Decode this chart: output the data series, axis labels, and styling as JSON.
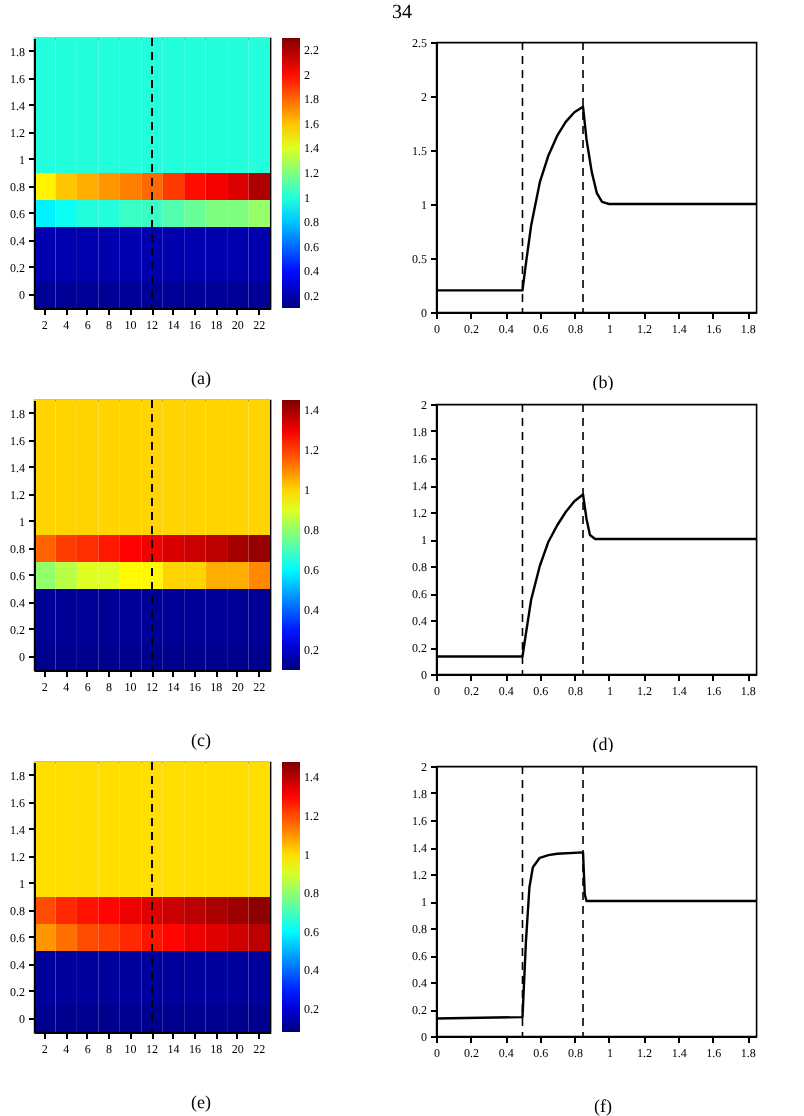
{
  "chart_data": [
    {
      "type": "heatmap",
      "annotations": [
        "34",
        "(a)"
      ],
      "categories": [
        "2",
        "4",
        "6",
        "8",
        "10",
        "12",
        "14",
        "16",
        "18",
        "20",
        "22"
      ],
      "y_categories": [
        "1.8",
        "1.6",
        "1.4",
        "1.2",
        "1",
        "0.8",
        "0.6",
        "0.4",
        "0.2",
        "0"
      ],
      "cells": [
        [
          1,
          1,
          1,
          1,
          1,
          1,
          1,
          1,
          1,
          1,
          1
        ],
        [
          1,
          1,
          1,
          1,
          1,
          1,
          1,
          1,
          1,
          1,
          1
        ],
        [
          1,
          1,
          1,
          1,
          1,
          1,
          1,
          1,
          1,
          1,
          1
        ],
        [
          1,
          1,
          1,
          1,
          1,
          1,
          1,
          1,
          1,
          1,
          1
        ],
        [
          1,
          1,
          1,
          1,
          1,
          1,
          1,
          1,
          1,
          1,
          1
        ],
        [
          1.5,
          1.6,
          1.65,
          1.7,
          1.75,
          1.8,
          1.9,
          2,
          2.05,
          2.1,
          2.2
        ],
        [
          0.9,
          0.95,
          1,
          1,
          1.05,
          1.05,
          1.1,
          1.15,
          1.2,
          1.2,
          1.25
        ],
        [
          0.2,
          0.2,
          0.2,
          0.2,
          0.2,
          0.2,
          0.2,
          0.2,
          0.2,
          0.2,
          0.2
        ],
        [
          0.2,
          0.2,
          0.2,
          0.2,
          0.2,
          0.2,
          0.2,
          0.2,
          0.2,
          0.2,
          0.2
        ],
        [
          0.15,
          0.15,
          0.15,
          0.15,
          0.15,
          0.15,
          0.15,
          0.15,
          0.15,
          0.15,
          0.15
        ]
      ],
      "clim": [
        0.1,
        2.3
      ],
      "cticks": [
        0.2,
        0.4,
        0.6,
        0.8,
        1,
        1.2,
        1.4,
        1.6,
        1.8,
        2,
        2.2
      ],
      "ref_lines": [
        {
          "axis": "x",
          "value": "12",
          "line_style": "dashed"
        }
      ]
    },
    {
      "type": "line",
      "annotations": [
        "(b)"
      ],
      "xlim": [
        0,
        1.85
      ],
      "xticks": [
        0,
        0.2,
        0.4,
        0.6,
        0.8,
        1,
        1.2,
        1.4,
        1.6,
        1.8
      ],
      "ylim": [
        0,
        2.5
      ],
      "yticks": [
        0,
        0.5,
        1,
        1.5,
        2,
        2.5
      ],
      "grid": false,
      "series": [
        {
          "color": "#000000",
          "x": [
            0,
            0.5,
            0.52,
            0.55,
            0.6,
            0.65,
            0.7,
            0.75,
            0.8,
            0.85,
            0.87,
            0.9,
            0.93,
            0.96,
            1,
            1.85
          ],
          "values": [
            0.2,
            0.2,
            0.45,
            0.8,
            1.2,
            1.45,
            1.63,
            1.76,
            1.85,
            1.9,
            1.6,
            1.3,
            1.1,
            1.02,
            1,
            1
          ]
        }
      ],
      "ref_lines": [
        {
          "axis": "x",
          "value": 0.5,
          "line_style": "dashed"
        },
        {
          "axis": "x",
          "value": 0.85,
          "line_style": "dashed"
        }
      ]
    },
    {
      "type": "heatmap",
      "annotations": [
        "(c)"
      ],
      "categories": [
        "2",
        "4",
        "6",
        "8",
        "10",
        "12",
        "14",
        "16",
        "18",
        "20",
        "22"
      ],
      "y_categories": [
        "1.8",
        "1.6",
        "1.4",
        "1.2",
        "1",
        "0.8",
        "0.6",
        "0.4",
        "0.2",
        "0"
      ],
      "cells": [
        [
          1,
          1,
          1,
          1,
          1,
          1,
          1,
          1,
          1,
          1,
          1
        ],
        [
          1,
          1,
          1,
          1,
          1,
          1,
          1,
          1,
          1,
          1,
          1
        ],
        [
          1,
          1,
          1,
          1,
          1,
          1,
          1,
          1,
          1,
          1,
          1
        ],
        [
          1,
          1,
          1,
          1,
          1,
          1,
          1,
          1,
          1,
          1,
          1
        ],
        [
          1,
          1,
          1,
          1,
          1,
          1,
          1,
          1,
          1,
          1,
          1
        ],
        [
          1.15,
          1.2,
          1.22,
          1.25,
          1.28,
          1.3,
          1.33,
          1.35,
          1.37,
          1.4,
          1.42
        ],
        [
          0.8,
          0.85,
          0.9,
          0.9,
          0.95,
          0.95,
          1,
          1,
          1.05,
          1.05,
          1.1
        ],
        [
          0.13,
          0.13,
          0.13,
          0.13,
          0.13,
          0.13,
          0.13,
          0.13,
          0.13,
          0.13,
          0.13
        ],
        [
          0.13,
          0.13,
          0.13,
          0.13,
          0.13,
          0.13,
          0.13,
          0.13,
          0.13,
          0.13,
          0.13
        ],
        [
          0.12,
          0.12,
          0.12,
          0.12,
          0.12,
          0.12,
          0.12,
          0.12,
          0.12,
          0.12,
          0.12
        ]
      ],
      "clim": [
        0.1,
        1.45
      ],
      "cticks": [
        0.2,
        0.4,
        0.6,
        0.8,
        1,
        1.2,
        1.4
      ],
      "ref_lines": [
        {
          "axis": "x",
          "value": "12",
          "line_style": "dashed"
        }
      ]
    },
    {
      "type": "line",
      "annotations": [
        "(d)"
      ],
      "xlim": [
        0,
        1.85
      ],
      "xticks": [
        0,
        0.2,
        0.4,
        0.6,
        0.8,
        1,
        1.2,
        1.4,
        1.6,
        1.8
      ],
      "ylim": [
        0,
        2
      ],
      "yticks": [
        0,
        0.2,
        0.4,
        0.6,
        0.8,
        1,
        1.2,
        1.4,
        1.6,
        1.8,
        2
      ],
      "grid": false,
      "series": [
        {
          "color": "#000000",
          "x": [
            0,
            0.5,
            0.52,
            0.55,
            0.6,
            0.65,
            0.7,
            0.75,
            0.8,
            0.85,
            0.87,
            0.89,
            0.92,
            1.85
          ],
          "values": [
            0.13,
            0.13,
            0.3,
            0.55,
            0.8,
            0.98,
            1.1,
            1.2,
            1.28,
            1.33,
            1.15,
            1.03,
            1,
            1
          ]
        }
      ],
      "ref_lines": [
        {
          "axis": "x",
          "value": 0.5,
          "line_style": "dashed"
        },
        {
          "axis": "x",
          "value": 0.85,
          "line_style": "dashed"
        }
      ]
    },
    {
      "type": "heatmap",
      "annotations": [
        "(e)"
      ],
      "categories": [
        "2",
        "4",
        "6",
        "8",
        "10",
        "12",
        "14",
        "16",
        "18",
        "20",
        "22"
      ],
      "y_categories": [
        "1.8",
        "1.6",
        "1.4",
        "1.2",
        "1",
        "0.8",
        "0.6",
        "0.4",
        "0.2",
        "0"
      ],
      "cells": [
        [
          1,
          1,
          1,
          1,
          1,
          1,
          1,
          1,
          1,
          1,
          1
        ],
        [
          1,
          1,
          1,
          1,
          1,
          1,
          1,
          1,
          1,
          1,
          1
        ],
        [
          1,
          1,
          1,
          1,
          1,
          1,
          1,
          1,
          1,
          1,
          1
        ],
        [
          1,
          1,
          1,
          1,
          1,
          1,
          1,
          1,
          1,
          1,
          1
        ],
        [
          1,
          1,
          1,
          1,
          1,
          1,
          1,
          1,
          1,
          1,
          1
        ],
        [
          1.2,
          1.25,
          1.28,
          1.3,
          1.33,
          1.35,
          1.38,
          1.4,
          1.42,
          1.44,
          1.46
        ],
        [
          1.1,
          1.15,
          1.2,
          1.22,
          1.25,
          1.28,
          1.3,
          1.33,
          1.35,
          1.37,
          1.4
        ],
        [
          0.12,
          0.12,
          0.12,
          0.12,
          0.12,
          0.12,
          0.12,
          0.12,
          0.12,
          0.12,
          0.12
        ],
        [
          0.12,
          0.12,
          0.12,
          0.12,
          0.12,
          0.12,
          0.12,
          0.12,
          0.12,
          0.12,
          0.12
        ],
        [
          0.1,
          0.1,
          0.1,
          0.1,
          0.1,
          0.1,
          0.1,
          0.1,
          0.1,
          0.1,
          0.1
        ]
      ],
      "clim": [
        0.08,
        1.48
      ],
      "cticks": [
        0.2,
        0.4,
        0.6,
        0.8,
        1,
        1.2,
        1.4
      ],
      "ref_lines": [
        {
          "axis": "x",
          "value": "12",
          "line_style": "dashed"
        }
      ]
    },
    {
      "type": "line",
      "annotations": [
        "(f)"
      ],
      "xlim": [
        0,
        1.85
      ],
      "xticks": [
        0,
        0.2,
        0.4,
        0.6,
        0.8,
        1,
        1.2,
        1.4,
        1.6,
        1.8
      ],
      "ylim": [
        0,
        2
      ],
      "yticks": [
        0,
        0.2,
        0.4,
        0.6,
        0.8,
        1,
        1.2,
        1.4,
        1.6,
        1.8,
        2
      ],
      "grid": false,
      "series": [
        {
          "color": "#000000",
          "x": [
            0,
            0.5,
            0.52,
            0.54,
            0.56,
            0.6,
            0.65,
            0.7,
            0.85,
            0.86,
            0.87,
            1.85
          ],
          "values": [
            0.13,
            0.14,
            0.7,
            1.1,
            1.25,
            1.32,
            1.34,
            1.35,
            1.36,
            1.05,
            1,
            1
          ]
        }
      ],
      "ref_lines": [
        {
          "axis": "x",
          "value": 0.5,
          "line_style": "dashed"
        },
        {
          "axis": "x",
          "value": 0.85,
          "line_style": "dashed"
        }
      ]
    }
  ]
}
